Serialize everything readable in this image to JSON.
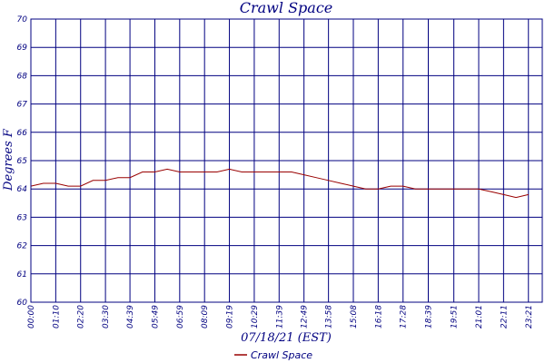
{
  "chart_data": {
    "type": "line",
    "title": "Crawl Space",
    "xlabel": "07/18/21 (EST)",
    "ylabel": "Degrees F",
    "ylim": [
      60,
      70
    ],
    "yticks": [
      60,
      61,
      62,
      63,
      64,
      65,
      66,
      67,
      68,
      69,
      70
    ],
    "xticks": [
      "00:00",
      "01:10",
      "02:20",
      "03:30",
      "04:39",
      "05:49",
      "06:59",
      "08:09",
      "09:19",
      "10:29",
      "11:39",
      "12:49",
      "13:58",
      "15:08",
      "16:18",
      "17:28",
      "18:39",
      "19:51",
      "21:01",
      "22:11",
      "23:21"
    ],
    "grid": true,
    "legend": "bottom-center",
    "colors": {
      "series": "#990000",
      "axis": "#000080",
      "grid": "#000080"
    },
    "series": [
      {
        "name": "Crawl Space",
        "x": [
          "00:00",
          "00:35",
          "01:10",
          "01:45",
          "02:20",
          "02:55",
          "03:30",
          "04:05",
          "04:39",
          "05:14",
          "05:49",
          "06:24",
          "06:59",
          "07:34",
          "08:09",
          "08:44",
          "09:19",
          "09:54",
          "10:29",
          "11:04",
          "11:39",
          "12:14",
          "12:49",
          "13:23",
          "13:58",
          "14:33",
          "15:08",
          "15:43",
          "16:18",
          "16:53",
          "17:28",
          "18:03",
          "18:39",
          "19:15",
          "19:51",
          "20:26",
          "21:01",
          "21:36",
          "22:11",
          "22:46",
          "23:21"
        ],
        "values": [
          64.1,
          64.2,
          64.2,
          64.1,
          64.1,
          64.3,
          64.3,
          64.4,
          64.4,
          64.6,
          64.6,
          64.7,
          64.6,
          64.6,
          64.6,
          64.6,
          64.7,
          64.6,
          64.6,
          64.6,
          64.6,
          64.6,
          64.5,
          64.4,
          64.3,
          64.2,
          64.1,
          64.0,
          64.0,
          64.1,
          64.1,
          64.0,
          64.0,
          64.0,
          64.0,
          64.0,
          64.0,
          63.9,
          63.8,
          63.7,
          63.8
        ]
      }
    ]
  }
}
